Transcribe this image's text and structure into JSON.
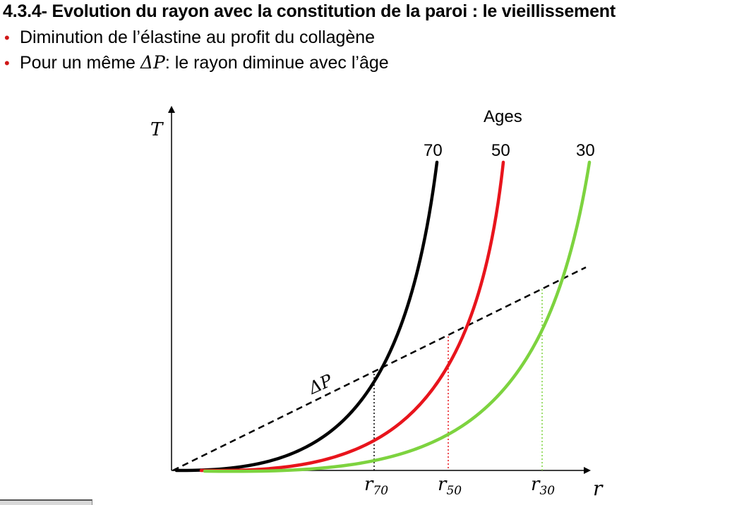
{
  "slide": {
    "title": "4.3.4- Evolution du rayon avec la constitution de la paroi : le vieillissement",
    "bullets": [
      {
        "before": "Diminution de l’élastine au profit du collagène",
        "math": "",
        "after": ""
      },
      {
        "before": "Pour un même ",
        "math": "ΔP",
        "after": ": le rayon diminue avec l’âge"
      }
    ],
    "bullet_color": "#d01818"
  },
  "diagram": {
    "y_axis_label": "T",
    "x_axis_label": "r",
    "legend_title": "Ages",
    "pressure_line_label": "ΔP",
    "curves": [
      {
        "age": "70",
        "color": "#000000",
        "radius_label_base": "r",
        "radius_label_sub": "70"
      },
      {
        "age": "50",
        "color": "#e8141c",
        "radius_label_base": "r",
        "radius_label_sub": "50"
      },
      {
        "age": "30",
        "color": "#7dd33f",
        "radius_label_base": "r",
        "radius_label_sub": "30"
      }
    ]
  }
}
